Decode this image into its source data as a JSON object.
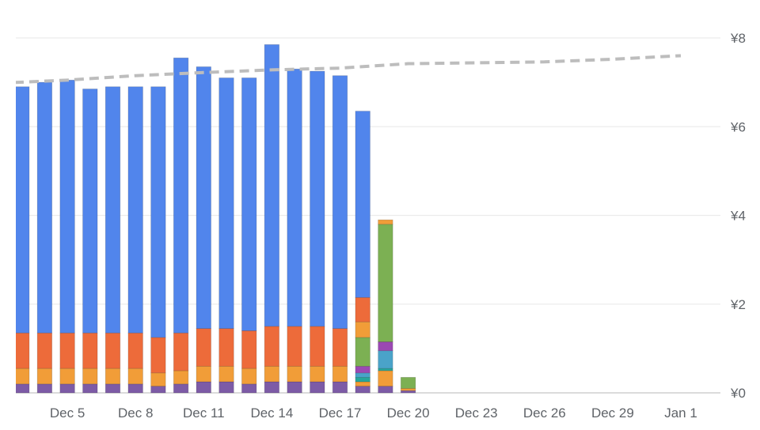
{
  "chart_data": {
    "type": "bar",
    "stacked": true,
    "title": "",
    "xlabel": "",
    "ylabel": "",
    "grid": true,
    "legend": "none",
    "y_axis_position": "right",
    "ylim": [
      0,
      8
    ],
    "y_ticks": [
      {
        "value": 0,
        "label": "¥0"
      },
      {
        "value": 2,
        "label": "¥2"
      },
      {
        "value": 4,
        "label": "¥4"
      },
      {
        "value": 6,
        "label": "¥6"
      },
      {
        "value": 8,
        "label": "¥8"
      }
    ],
    "x_tick_labels": [
      "Dec 5",
      "Dec 8",
      "Dec 11",
      "Dec 14",
      "Dec 17",
      "Dec 20",
      "Dec 23",
      "Dec 26",
      "Dec 29",
      "Jan 1"
    ],
    "categories": [
      "Dec 2",
      "Dec 3",
      "Dec 4",
      "Dec 5",
      "Dec 6",
      "Dec 7",
      "Dec 8",
      "Dec 9",
      "Dec 10",
      "Dec 11",
      "Dec 12",
      "Dec 13",
      "Dec 14",
      "Dec 15",
      "Dec 16",
      "Dec 17",
      "Dec 18",
      "Dec 19",
      "Dec 20",
      "Dec 21",
      "Dec 22",
      "Dec 23",
      "Dec 24",
      "Dec 25",
      "Dec 26",
      "Dec 27",
      "Dec 28",
      "Dec 29",
      "Dec 30",
      "Dec 31",
      "Jan 1"
    ],
    "series": [
      {
        "color": "#7d5ba6",
        "values": [
          0.2,
          0.2,
          0.2,
          0.2,
          0.2,
          0.2,
          0.2,
          0.15,
          0.2,
          0.25,
          0.25,
          0.2,
          0.25,
          0.25,
          0.25,
          0.25,
          0.15,
          0.15,
          0.05,
          0,
          0,
          0,
          0,
          0,
          0,
          0,
          0,
          0,
          0,
          0,
          0
        ]
      },
      {
        "color": "#f19d38",
        "values": [
          0.35,
          0.35,
          0.35,
          0.35,
          0.35,
          0.35,
          0.35,
          0.3,
          0.3,
          0.35,
          0.35,
          0.35,
          0.35,
          0.35,
          0.35,
          0.35,
          0.1,
          0.35,
          0.05,
          0,
          0,
          0,
          0,
          0,
          0,
          0,
          0,
          0,
          0,
          0,
          0
        ]
      },
      {
        "color": "#26a69a",
        "values": [
          0,
          0,
          0,
          0,
          0,
          0,
          0,
          0,
          0,
          0,
          0,
          0,
          0,
          0,
          0,
          0,
          0.1,
          0.05,
          0,
          0,
          0,
          0,
          0,
          0,
          0,
          0,
          0,
          0,
          0,
          0,
          0
        ]
      },
      {
        "color": "#4aa3c9",
        "values": [
          0,
          0,
          0,
          0,
          0,
          0,
          0,
          0,
          0,
          0,
          0,
          0,
          0,
          0,
          0,
          0,
          0.1,
          0.4,
          0,
          0,
          0,
          0,
          0,
          0,
          0,
          0,
          0,
          0,
          0,
          0,
          0
        ]
      },
      {
        "color": "#9b48b3",
        "values": [
          0,
          0,
          0,
          0,
          0,
          0,
          0,
          0,
          0,
          0,
          0,
          0,
          0,
          0,
          0,
          0,
          0.15,
          0.2,
          0,
          0,
          0,
          0,
          0,
          0,
          0,
          0,
          0,
          0,
          0,
          0,
          0
        ]
      },
      {
        "color": "#7cb053",
        "values": [
          0,
          0,
          0,
          0,
          0,
          0,
          0,
          0,
          0,
          0,
          0,
          0,
          0,
          0,
          0,
          0,
          0.65,
          2.65,
          0.25,
          0,
          0,
          0,
          0,
          0,
          0,
          0,
          0,
          0,
          0,
          0,
          0
        ]
      },
      {
        "color": "#f19d38",
        "values": [
          0,
          0,
          0,
          0,
          0,
          0,
          0,
          0,
          0,
          0,
          0,
          0,
          0,
          0,
          0,
          0,
          0.35,
          0.1,
          0,
          0,
          0,
          0,
          0,
          0,
          0,
          0,
          0,
          0,
          0,
          0,
          0
        ]
      },
      {
        "color": "#ed6b3a",
        "values": [
          0.8,
          0.8,
          0.8,
          0.8,
          0.8,
          0.8,
          0.8,
          0.8,
          0.85,
          0.85,
          0.85,
          0.85,
          0.9,
          0.9,
          0.9,
          0.85,
          0.55,
          0,
          0,
          0,
          0,
          0,
          0,
          0,
          0,
          0,
          0,
          0,
          0,
          0,
          0
        ]
      },
      {
        "color": "#5185ec",
        "values": [
          5.7,
          5.55,
          5.65,
          5.7,
          5.5,
          5.55,
          5.55,
          5.65,
          6.2,
          5.9,
          5.65,
          5.7,
          6.35,
          5.8,
          5.75,
          5.7,
          4.2,
          0,
          0,
          0,
          0,
          0,
          0,
          0,
          0,
          0,
          0,
          0,
          0,
          0,
          0
        ]
      }
    ],
    "trend_line": {
      "style": "dashed",
      "color": "#bdbdbd",
      "points": [
        {
          "x": "Dec 2",
          "y": 6.98
        },
        {
          "x": "Dec 5",
          "y": 7.05
        },
        {
          "x": "Dec 8",
          "y": 7.15
        },
        {
          "x": "Dec 11",
          "y": 7.22
        },
        {
          "x": "Dec 14",
          "y": 7.28
        },
        {
          "x": "Dec 17",
          "y": 7.32
        },
        {
          "x": "Dec 20",
          "y": 7.42
        },
        {
          "x": "Dec 23",
          "y": 7.44
        },
        {
          "x": "Dec 26",
          "y": 7.46
        },
        {
          "x": "Dec 29",
          "y": 7.52
        },
        {
          "x": "Jan 1",
          "y": 7.6
        }
      ]
    }
  }
}
